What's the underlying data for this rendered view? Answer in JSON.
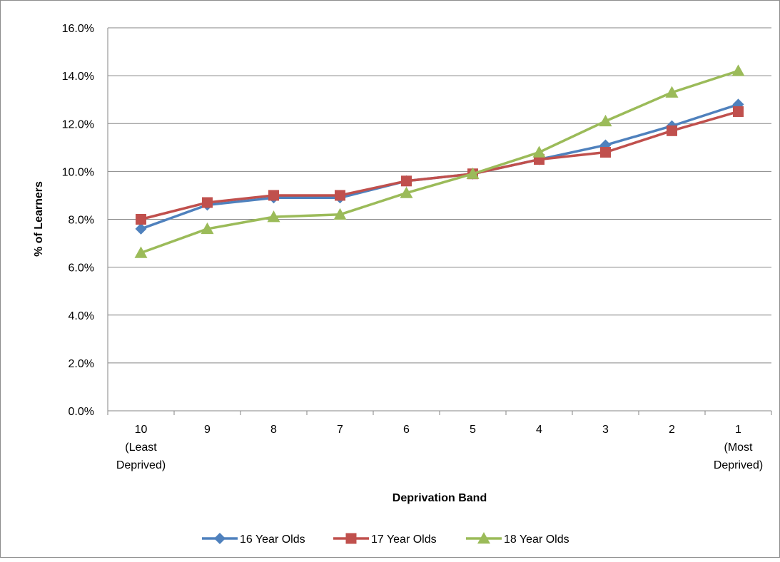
{
  "chart_data": {
    "type": "line",
    "title": "",
    "xlabel": "Deprivation Band",
    "ylabel": "% of Learners",
    "ylim": [
      0,
      16
    ],
    "y_ticks": [
      "0.0%",
      "2.0%",
      "4.0%",
      "6.0%",
      "8.0%",
      "10.0%",
      "12.0%",
      "14.0%",
      "16.0%"
    ],
    "grid": "horizontal",
    "legend_position": "bottom",
    "categories": [
      [
        "10",
        "(Least",
        "Deprived)"
      ],
      [
        "9"
      ],
      [
        "8"
      ],
      [
        "7"
      ],
      [
        "6"
      ],
      [
        "5"
      ],
      [
        "4"
      ],
      [
        "3"
      ],
      [
        "2"
      ],
      [
        "1",
        "(Most",
        "Deprived)"
      ]
    ],
    "series": [
      {
        "name": "16 Year Olds",
        "color": "#4f81bd",
        "marker": "diamond",
        "values": [
          7.6,
          8.6,
          8.9,
          8.9,
          9.6,
          9.9,
          10.5,
          11.1,
          11.9,
          12.8
        ]
      },
      {
        "name": "17 Year Olds",
        "color": "#c0504d",
        "marker": "square",
        "values": [
          8.0,
          8.7,
          9.0,
          9.0,
          9.6,
          9.9,
          10.5,
          10.8,
          11.7,
          12.5
        ]
      },
      {
        "name": "18 Year Olds",
        "color": "#9bbb59",
        "marker": "triangle",
        "values": [
          6.6,
          7.6,
          8.1,
          8.2,
          9.1,
          9.9,
          10.8,
          12.1,
          13.3,
          14.2
        ]
      }
    ]
  }
}
